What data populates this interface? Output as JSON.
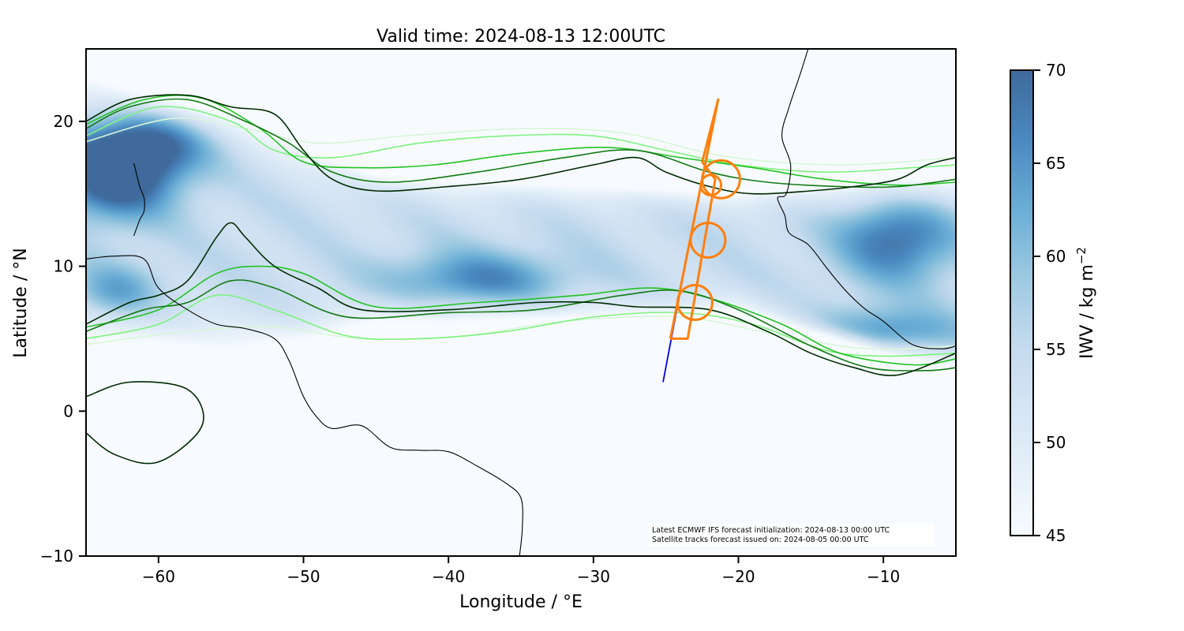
{
  "title": "Valid time: 2024-08-13 12:00UTC",
  "x_axis": {
    "label": "Longitude / °E",
    "range": [
      -65,
      -5
    ],
    "ticks": [
      -60,
      -50,
      -40,
      -30,
      -20,
      -10
    ],
    "tick_labels": [
      "−60",
      "−50",
      "−40",
      "−30",
      "−20",
      "−10"
    ]
  },
  "y_axis": {
    "label": "Latitude / °N",
    "range": [
      -10,
      25
    ],
    "ticks": [
      -10,
      0,
      10,
      20
    ],
    "tick_labels": [
      "−10",
      "0",
      "10",
      "20"
    ]
  },
  "colorbar": {
    "label": "IWV / kg m",
    "label_exponent": "−2",
    "range": [
      45,
      70
    ],
    "ticks": [
      45,
      50,
      55,
      60,
      65,
      70
    ],
    "tick_labels": [
      "45",
      "50",
      "55",
      "60",
      "65",
      "70"
    ],
    "colormap": "Blues",
    "color_low": "#f7fbff",
    "color_high": "#3f6a9b"
  },
  "annotation": {
    "line1": "Latest ECMWF IFS forecast initialization: 2024-08-13 00:00 UTC",
    "line2": "Satellite tracks forecast issued on: 2024-08-05 00:00 UTC"
  },
  "chart_data": {
    "type": "heatmap",
    "field": "IWV",
    "grid": false,
    "iwv_field": {
      "band_center_lat": [
        [
          -65,
          14
        ],
        [
          -50,
          11.5
        ],
        [
          -40,
          11
        ],
        [
          -30,
          11
        ],
        [
          -20,
          11
        ],
        [
          -10,
          10
        ],
        [
          -5,
          9.5
        ]
      ],
      "band_halfwidth_deg": [
        [
          -65,
          9
        ],
        [
          -55,
          8
        ],
        [
          -45,
          5
        ],
        [
          -30,
          4.5
        ],
        [
          -20,
          4
        ],
        [
          -10,
          6
        ],
        [
          -5,
          6.5
        ]
      ],
      "blobs": [
        {
          "lon": -63,
          "lat": 16.5,
          "iwv": 67,
          "rlon": 4,
          "rlat": 3
        },
        {
          "lon": -60,
          "lat": 19,
          "iwv": 62,
          "rlon": 4,
          "rlat": 2.5
        },
        {
          "lon": -11,
          "lat": 5,
          "iwv": 64,
          "rlon": 6,
          "rlat": 1.8
        },
        {
          "lon": -9,
          "lat": 12,
          "iwv": 60,
          "rlon": 4,
          "rlat": 3
        },
        {
          "lon": -38,
          "lat": 9,
          "iwv": 57,
          "rlon": 6,
          "rlat": 2
        },
        {
          "lon": -63,
          "lat": 8,
          "iwv": 56,
          "rlon": 3,
          "rlat": 2
        },
        {
          "lon": -60,
          "lat": -1,
          "iwv": 52,
          "rlon": 5,
          "rlat": 2
        }
      ],
      "background_iwv": 45,
      "band_peak_iwv": 56
    },
    "contour_series": [
      {
        "color": "#002a00",
        "lines": [
          [
            [
              -65,
              20
            ],
            [
              -62,
              21.5
            ],
            [
              -58,
              21.8
            ],
            [
              -55,
              21
            ],
            [
              -52,
              20.5
            ],
            [
              -50,
              18
            ],
            [
              -48,
              16
            ],
            [
              -45,
              15.2
            ],
            [
              -40,
              15.5
            ],
            [
              -35,
              16
            ],
            [
              -30,
              17
            ],
            [
              -27,
              17.5
            ],
            [
              -25,
              16.5
            ],
            [
              -22,
              15.5
            ],
            [
              -19,
              15
            ],
            [
              -15,
              15.2
            ],
            [
              -12,
              15.5
            ],
            [
              -9,
              16
            ],
            [
              -7,
              17
            ],
            [
              -5,
              17.5
            ]
          ],
          [
            [
              -65,
              6
            ],
            [
              -62,
              7.5
            ],
            [
              -60,
              8
            ],
            [
              -58,
              9
            ],
            [
              -56,
              12
            ],
            [
              -55,
              13
            ],
            [
              -54,
              12
            ],
            [
              -52,
              10
            ],
            [
              -49,
              8.5
            ],
            [
              -46,
              7
            ],
            [
              -40,
              7
            ],
            [
              -34,
              7.5
            ],
            [
              -30,
              7.5
            ],
            [
              -27,
              7.2
            ],
            [
              -22,
              7
            ],
            [
              -18,
              5.5
            ],
            [
              -15,
              4
            ],
            [
              -12,
              3
            ],
            [
              -9,
              2.5
            ],
            [
              -5,
              4
            ]
          ],
          [
            [
              -65,
              1
            ],
            [
              -62,
              2
            ],
            [
              -58,
              1.5
            ],
            [
              -57,
              -1
            ],
            [
              -60,
              -3.5
            ],
            [
              -63,
              -3
            ],
            [
              -65,
              -1.5
            ]
          ]
        ]
      },
      {
        "color": "#137a13",
        "lines": [
          [
            [
              -65,
              19.5
            ],
            [
              -62,
              21
            ],
            [
              -58,
              21.5
            ],
            [
              -54,
              20
            ],
            [
              -51,
              18.5
            ],
            [
              -48,
              16.5
            ],
            [
              -44,
              15.8
            ],
            [
              -38,
              16.5
            ],
            [
              -32,
              17.5
            ],
            [
              -27,
              18
            ],
            [
              -22,
              16.5
            ],
            [
              -18,
              15.8
            ],
            [
              -13,
              15.5
            ],
            [
              -9,
              15.5
            ],
            [
              -5,
              16
            ]
          ],
          [
            [
              -65,
              5.5
            ],
            [
              -61,
              7
            ],
            [
              -58,
              7.5
            ],
            [
              -55,
              9
            ],
            [
              -52,
              8.5
            ],
            [
              -47,
              6.5
            ],
            [
              -40,
              6.8
            ],
            [
              -34,
              7
            ],
            [
              -28,
              8
            ],
            [
              -24,
              8.3
            ],
            [
              -20,
              7
            ],
            [
              -15,
              4.5
            ],
            [
              -11,
              3
            ],
            [
              -7,
              2.8
            ],
            [
              -5,
              3
            ]
          ]
        ]
      },
      {
        "color": "#22c322",
        "lines": [
          [
            [
              -65,
              19.8
            ],
            [
              -61,
              21.5
            ],
            [
              -57,
              21.6
            ],
            [
              -53,
              19.5
            ],
            [
              -50,
              17.2
            ],
            [
              -46,
              16.8
            ],
            [
              -41,
              17
            ],
            [
              -35,
              17.8
            ],
            [
              -29,
              18.2
            ],
            [
              -24,
              17.5
            ],
            [
              -19,
              16.8
            ],
            [
              -14,
              16
            ],
            [
              -9,
              15.6
            ],
            [
              -5,
              15.8
            ]
          ],
          [
            [
              -65,
              5.8
            ],
            [
              -60,
              7
            ],
            [
              -56,
              9.5
            ],
            [
              -53,
              10
            ],
            [
              -50,
              9.5
            ],
            [
              -45,
              7.2
            ],
            [
              -38,
              7.5
            ],
            [
              -31,
              8
            ],
            [
              -26,
              8.5
            ],
            [
              -22,
              7.8
            ],
            [
              -17,
              6
            ],
            [
              -13,
              4
            ],
            [
              -8,
              3.2
            ],
            [
              -5,
              3.6
            ]
          ]
        ]
      },
      {
        "color": "#7ef27e",
        "lines": [
          [
            [
              -65,
              19
            ],
            [
              -60,
              21
            ],
            [
              -55,
              20
            ],
            [
              -52,
              18
            ],
            [
              -48,
              17.5
            ],
            [
              -42,
              18.5
            ],
            [
              -36,
              19
            ],
            [
              -30,
              19
            ],
            [
              -25,
              18
            ],
            [
              -20,
              17
            ],
            [
              -14,
              16.5
            ],
            [
              -8,
              16.8
            ],
            [
              -5,
              17
            ]
          ],
          [
            [
              -65,
              5
            ],
            [
              -60,
              6
            ],
            [
              -56,
              8
            ],
            [
              -52,
              7
            ],
            [
              -47,
              5.2
            ],
            [
              -42,
              5
            ],
            [
              -36,
              5.5
            ],
            [
              -30,
              6.5
            ],
            [
              -24,
              6.8
            ],
            [
              -19,
              6
            ],
            [
              -14,
              4.2
            ],
            [
              -10,
              3.8
            ],
            [
              -5,
              4
            ]
          ]
        ]
      },
      {
        "color": "#d8f6d8",
        "lines": [
          [
            [
              -65,
              18.6
            ],
            [
              -59,
              20.2
            ],
            [
              -54,
              19.5
            ],
            [
              -49,
              18.5
            ],
            [
              -43,
              19
            ],
            [
              -35,
              19.5
            ],
            [
              -28,
              19.2
            ],
            [
              -21,
              17.6
            ],
            [
              -13,
              17
            ],
            [
              -5,
              17.5
            ]
          ],
          [
            [
              -65,
              4.6
            ],
            [
              -58,
              5.5
            ],
            [
              -52,
              5.8
            ],
            [
              -46,
              5
            ],
            [
              -39,
              5.2
            ],
            [
              -32,
              6.2
            ],
            [
              -24,
              6.5
            ],
            [
              -17,
              5.2
            ],
            [
              -11,
              4.3
            ],
            [
              -5,
              4.5
            ]
          ]
        ]
      }
    ],
    "coastlines": [
      {
        "name": "south-america",
        "points": [
          [
            -65,
            10.5
          ],
          [
            -63,
            10.7
          ],
          [
            -61,
            10.5
          ],
          [
            -60,
            8.5
          ],
          [
            -58,
            7
          ],
          [
            -56,
            6
          ],
          [
            -54,
            5.7
          ],
          [
            -52,
            5
          ],
          [
            -51,
            3.5
          ],
          [
            -50,
            1
          ],
          [
            -49,
            -0.5
          ],
          [
            -48,
            -1.2
          ],
          [
            -46,
            -1
          ],
          [
            -44,
            -2.5
          ],
          [
            -42,
            -2.7
          ],
          [
            -40,
            -2.8
          ],
          [
            -38,
            -3.8
          ],
          [
            -36,
            -5
          ],
          [
            -35,
            -6
          ],
          [
            -34.9,
            -8
          ],
          [
            -35.1,
            -10
          ]
        ]
      },
      {
        "name": "africa",
        "points": [
          [
            -14,
            29
          ],
          [
            -15.5,
            24
          ],
          [
            -16.5,
            21
          ],
          [
            -17,
            19
          ],
          [
            -16.4,
            17
          ],
          [
            -16.7,
            15
          ],
          [
            -17.3,
            14.7
          ],
          [
            -16.8,
            13.5
          ],
          [
            -16.5,
            12.3
          ],
          [
            -15.2,
            11.5
          ],
          [
            -14,
            10
          ],
          [
            -13.2,
            9
          ],
          [
            -12.3,
            8
          ],
          [
            -11.2,
            7
          ],
          [
            -10,
            6.2
          ],
          [
            -8,
            4.6
          ],
          [
            -6,
            4.3
          ],
          [
            -5,
            4.5
          ]
        ]
      },
      {
        "name": "caribbean-arc",
        "points": [
          [
            -61.7,
            17.1
          ],
          [
            -61.5,
            16.3
          ],
          [
            -61.3,
            15.5
          ],
          [
            -61,
            14.7
          ],
          [
            -61,
            13.8
          ],
          [
            -61.3,
            13.2
          ],
          [
            -61.7,
            12.1
          ]
        ]
      }
    ],
    "satellite_track": {
      "color": "#0000dd",
      "points": [
        [
          -25.2,
          2
        ],
        [
          -23.4,
          11.5
        ],
        [
          -21.4,
          21.5
        ]
      ]
    },
    "flight_track": {
      "color": "#ff7f0e",
      "points": [
        [
          -24.7,
          5
        ],
        [
          -23.5,
          5
        ],
        [
          -21.6,
          16
        ],
        [
          -22.5,
          17.2
        ],
        [
          -21.4,
          21.5
        ],
        [
          -24.7,
          5
        ]
      ]
    },
    "circles": [
      {
        "lon": -21.2,
        "lat": 16,
        "radius_deg": 1.3
      },
      {
        "lon": -21.9,
        "lat": 15.6,
        "radius_deg": 0.7
      },
      {
        "lon": -22.1,
        "lat": 11.8,
        "radius_deg": 1.2
      },
      {
        "lon": -23,
        "lat": 7.5,
        "radius_deg": 1.2
      }
    ]
  }
}
